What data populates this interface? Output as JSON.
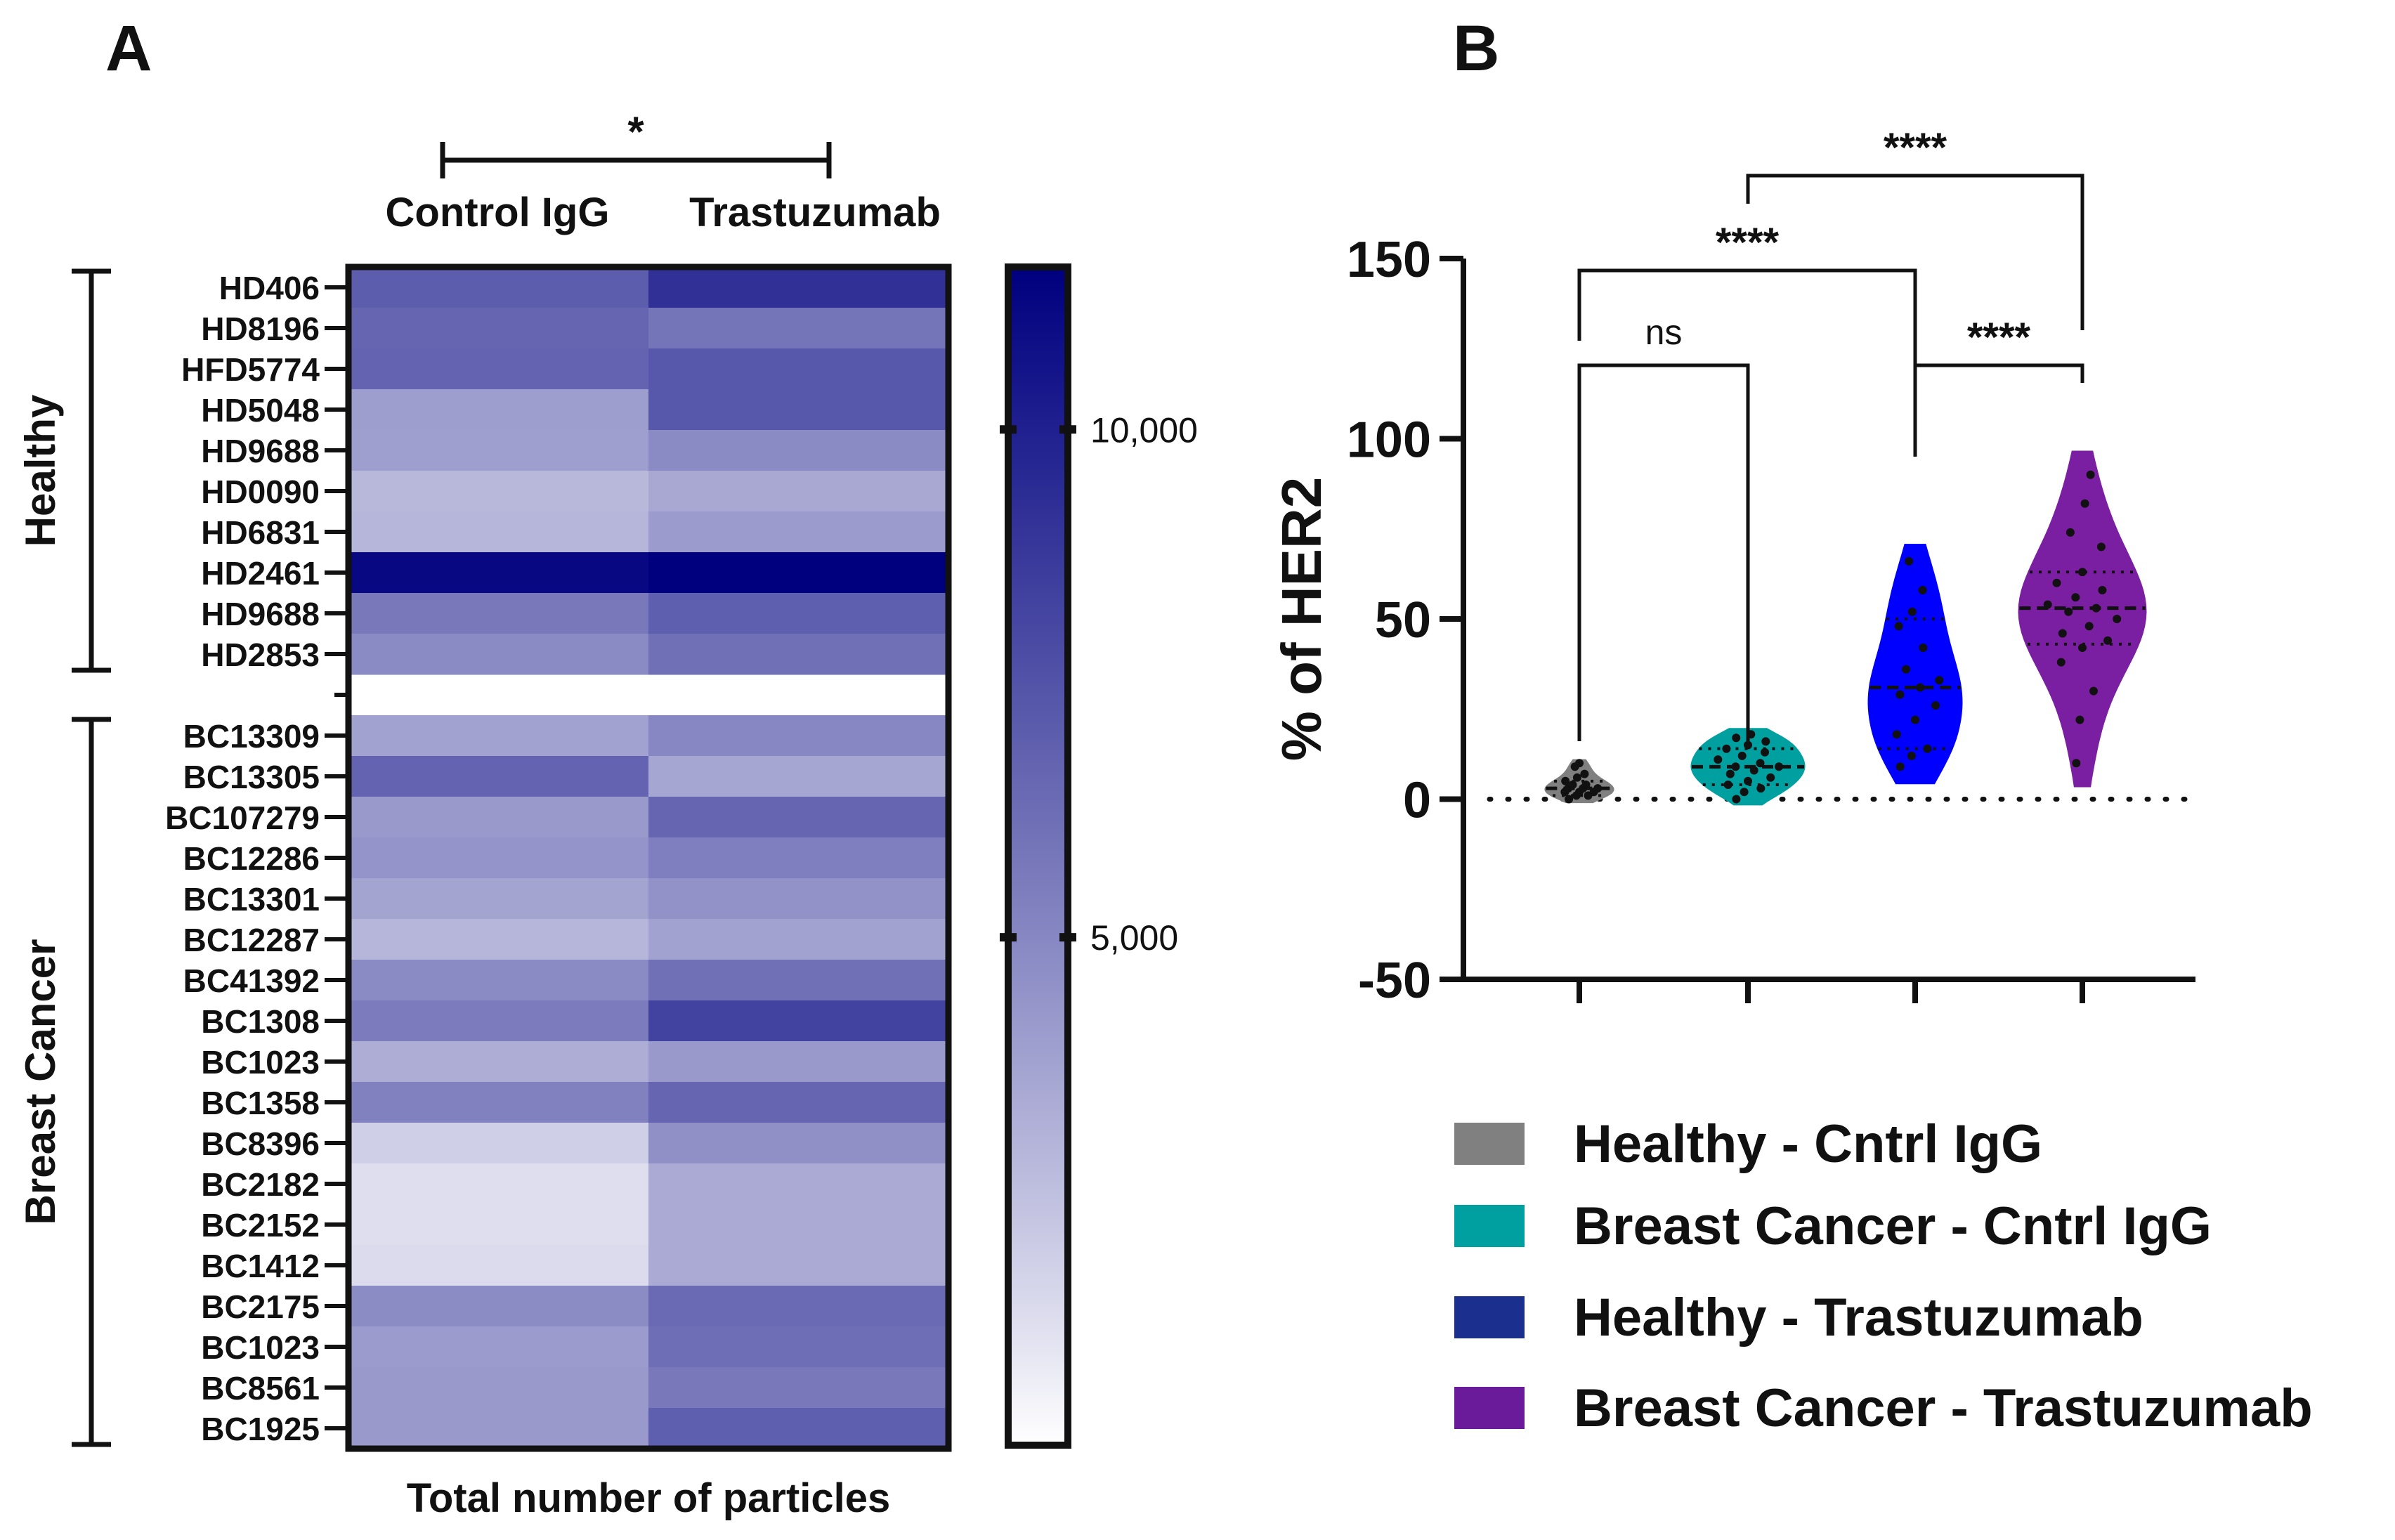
{
  "chart_data": [
    {
      "panel": "A",
      "type": "heatmap",
      "columns": [
        "Control IgG",
        "Trastuzumab"
      ],
      "significance": "*",
      "groups": [
        {
          "label": "Healthy",
          "rows": [
            "HD406",
            "HD8196",
            "HFD5774",
            "HD5048",
            "HD9688",
            "HD0090",
            "HD6831",
            "HD2461",
            "HD9688",
            "HD2853"
          ]
        },
        {
          "label": "Breast Cancer",
          "rows": [
            "BC13309",
            "BC13305",
            "BC107279",
            "BC12286",
            "BC13301",
            "BC12287",
            "BC41392",
            "BC1308",
            "BC1023",
            "BC1358",
            "BC8396",
            "BC2182",
            "BC2152",
            "BC1412",
            "BC2175",
            "BC1023",
            "BC8561",
            "BC1925"
          ]
        }
      ],
      "healthy_values": [
        [
          7000,
          9200
        ],
        [
          6600,
          5900
        ],
        [
          6700,
          7300
        ],
        [
          4000,
          7300
        ],
        [
          3900,
          4900
        ],
        [
          2800,
          3500
        ],
        [
          2900,
          4100
        ],
        [
          11200,
          12500
        ],
        [
          5700,
          6900
        ],
        [
          4900,
          6100
        ]
      ],
      "cancer_values": [
        [
          3800,
          5000
        ],
        [
          6700,
          3600
        ],
        [
          4200,
          6600
        ],
        [
          4400,
          5400
        ],
        [
          3700,
          4500
        ],
        [
          2900,
          3800
        ],
        [
          4900,
          6100
        ],
        [
          5600,
          8300
        ],
        [
          3300,
          4200
        ],
        [
          5300,
          6600
        ],
        [
          1800,
          4600
        ],
        [
          1200,
          3400
        ],
        [
          1200,
          3400
        ],
        [
          1300,
          3400
        ],
        [
          4800,
          6400
        ],
        [
          4100,
          6200
        ],
        [
          4200,
          5700
        ],
        [
          4200,
          6900
        ]
      ],
      "colorbar": {
        "ticks": [
          5000,
          10000
        ],
        "tick_labels": [
          "5,000",
          "10,000"
        ],
        "range": [
          0,
          11600
        ],
        "color_low": "#ffffff",
        "color_high": "#00007f"
      },
      "xlabel": "Total number of particles"
    },
    {
      "panel": "B",
      "type": "violin",
      "ylabel": "% of HER2",
      "ylim": [
        -50,
        150
      ],
      "yticks": [
        -50,
        0,
        50,
        100,
        150
      ],
      "zero_line": 0,
      "series": [
        {
          "name": "Healthy - Cntrl IgG",
          "color": "#808080",
          "median": 3,
          "q1": 1,
          "q3": 5,
          "min": 0,
          "max": 10,
          "points": [
            0,
            1,
            1,
            2,
            2,
            2,
            3,
            3,
            3,
            4,
            4,
            5,
            6,
            7,
            9,
            10
          ]
        },
        {
          "name": "Breast Cancer - Cntrl IgG",
          "color": "#00a0a0",
          "median": 9,
          "q1": 4,
          "q3": 14,
          "min": 0,
          "max": 18,
          "points": [
            0,
            2,
            3,
            4,
            5,
            6,
            7,
            8,
            9,
            9,
            10,
            11,
            12,
            13,
            14,
            15,
            16,
            17,
            18
          ]
        },
        {
          "name": "Healthy - Trastuzumab",
          "color": "#0000ff",
          "median": 31,
          "q1": 14,
          "q3": 50,
          "min": 9,
          "max": 66,
          "points": [
            9,
            12,
            14,
            18,
            22,
            26,
            29,
            31,
            33,
            36,
            42,
            48,
            52,
            58,
            66
          ]
        },
        {
          "name": "Breast Cancer - Trastuzumab",
          "color": "#7b1fa2",
          "median": 53,
          "q1": 43,
          "q3": 63,
          "min": 10,
          "max": 90,
          "points": [
            10,
            22,
            30,
            38,
            42,
            44,
            46,
            48,
            50,
            52,
            53,
            54,
            56,
            58,
            60,
            63,
            70,
            74,
            82,
            90
          ]
        }
      ],
      "comparisons": [
        {
          "from": 1,
          "to": 2,
          "label": "ns"
        },
        {
          "from": 3,
          "to": 4,
          "label": "****"
        },
        {
          "from": 1,
          "to": 3,
          "label": "****"
        },
        {
          "from": 2,
          "to": 4,
          "label": "****"
        }
      ]
    }
  ],
  "panel_labels": [
    "A",
    "B"
  ],
  "legend": {
    "entries": [
      {
        "label": "Healthy - Cntrl IgG",
        "color": "#808080"
      },
      {
        "label": "Breast Cancer - Cntrl IgG",
        "color": "#00a0a0"
      },
      {
        "label": "Healthy - Trastuzumab",
        "color": "#1a2f8e"
      },
      {
        "label": "Breast Cancer - Trastuzumab",
        "color": "#6a1b9a"
      }
    ]
  }
}
